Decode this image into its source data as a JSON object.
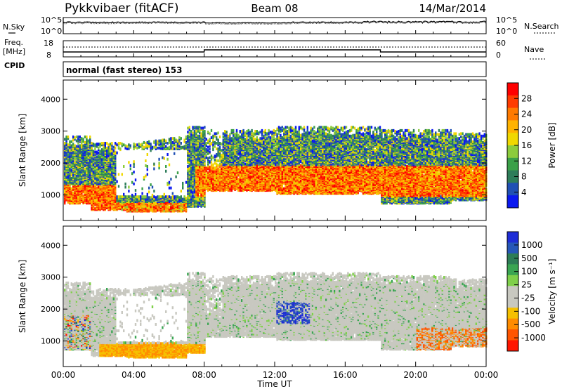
{
  "header": {
    "station": "Pykkvibaer (fitACF)",
    "beam": "Beam 08",
    "date": "14/Mar/2014"
  },
  "noise_panel": {
    "left_label": "N.Sky",
    "right_label": "N.Search",
    "left_ticks": [
      "10^5",
      "10^0"
    ],
    "right_ticks": [
      "10^5",
      "10^0"
    ]
  },
  "freq_panel": {
    "left_label_line1": "Freq.",
    "left_label_line2": "[MHz]",
    "right_label": "Nave",
    "left_ticks": [
      "18",
      "8"
    ],
    "right_ticks": [
      "60",
      "0"
    ],
    "cpid_label": "CPID",
    "cpid_value": "normal (fast stereo) 153"
  },
  "power_colorbar": {
    "title": "Power [dB]",
    "ticks": [
      "28",
      "24",
      "20",
      "16",
      "12",
      "8",
      "4"
    ],
    "colors": [
      "#ff0000",
      "#ff3b00",
      "#ff7a00",
      "#ffb300",
      "#f0d800",
      "#8ccc3c",
      "#3aa048",
      "#2e7d5a",
      "#2050b4",
      "#0a18f0"
    ]
  },
  "velocity_colorbar": {
    "title": "Velocity [m s⁻¹]",
    "ticks": [
      "1000",
      "500",
      "100",
      "25",
      "-25",
      "-100",
      "-500",
      "-1000"
    ],
    "colors": [
      "#1f2dd6",
      "#2657b8",
      "#2d7d56",
      "#3aa552",
      "#7fd04a",
      "#c8c8c0",
      "#c8c8c0",
      "#f5c000",
      "#ff8c00",
      "#ff5500",
      "#ff1500"
    ]
  },
  "chart_data": [
    {
      "type": "heatmap",
      "panel": "power",
      "ylabel": "Slant Range [km]",
      "yticks": [
        1000,
        2000,
        3000,
        4000
      ],
      "ylim": [
        200,
        4600
      ],
      "xlim": [
        0,
        24
      ],
      "xticks": [
        "00:00",
        "04:00",
        "08:00",
        "12:00",
        "16:00",
        "20:00",
        "00:00"
      ],
      "units": "dB"
    },
    {
      "type": "heatmap",
      "panel": "velocity",
      "ylabel": "Slant Range [km]",
      "xlabel": "Time UT",
      "yticks": [
        1000,
        2000,
        3000,
        4000
      ],
      "ylim": [
        200,
        4600
      ],
      "xlim": [
        0,
        24
      ],
      "xticks": [
        "00:00",
        "04:00",
        "08:00",
        "12:00",
        "16:00",
        "20:00",
        "00:00"
      ],
      "units": "m/s"
    }
  ]
}
